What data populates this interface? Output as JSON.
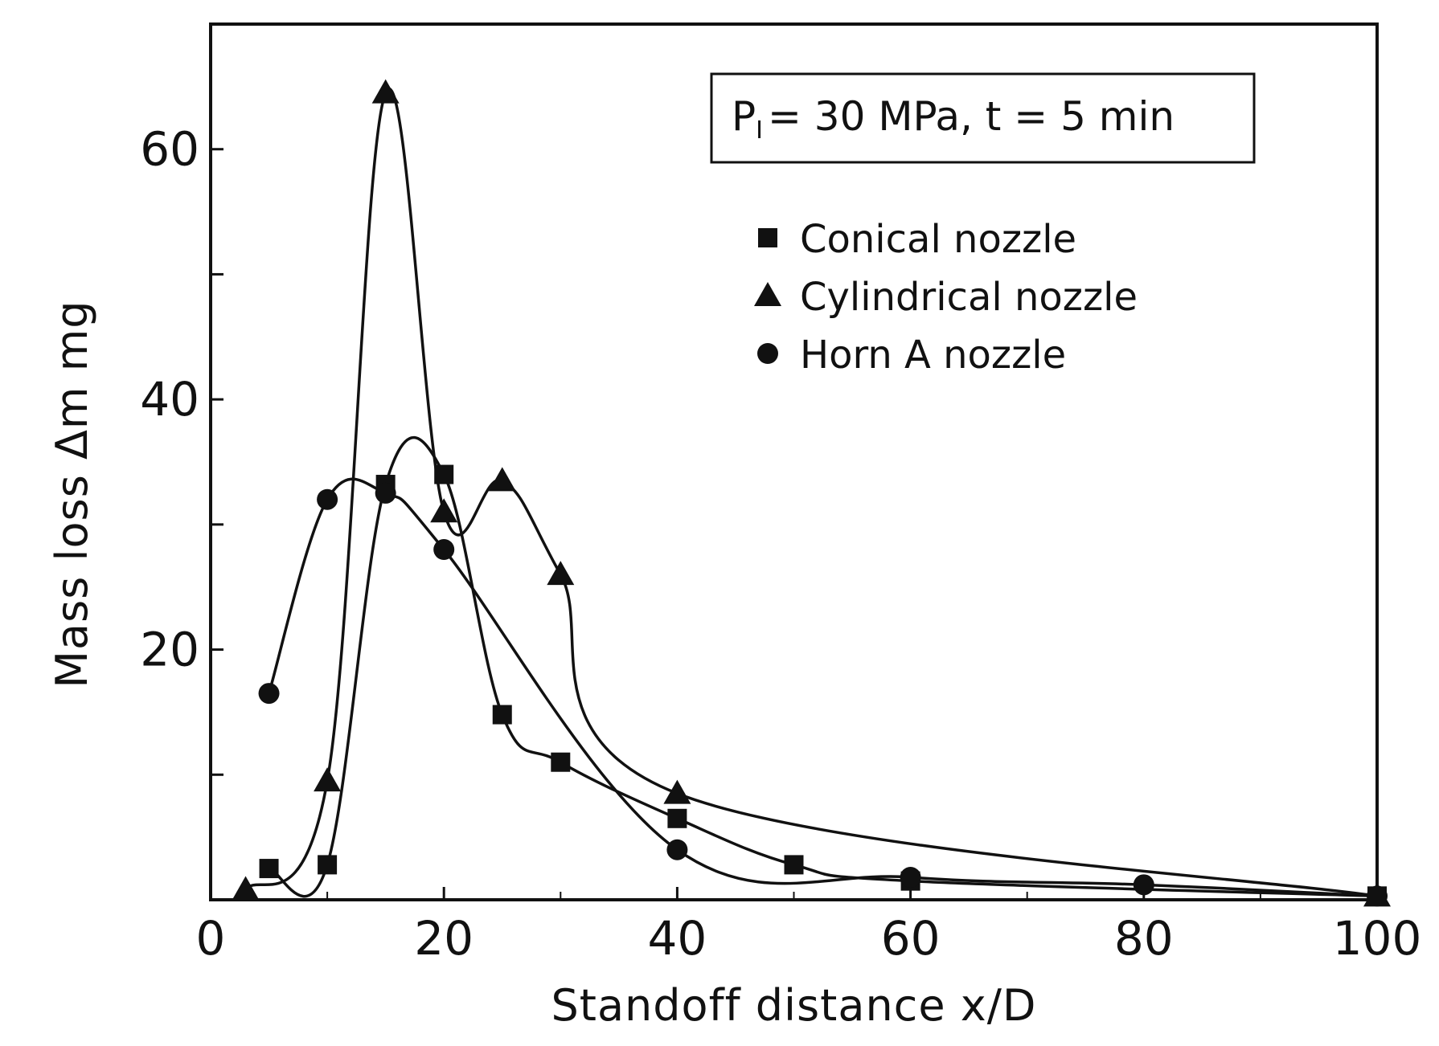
{
  "chart_data": {
    "type": "line",
    "xlabel": "Standoff distance  x/D",
    "ylabel": "Mass loss  Δm  mg",
    "xlim": [
      0,
      100
    ],
    "ylim": [
      0,
      70
    ],
    "x_ticks": [
      0,
      20,
      40,
      60,
      80,
      100
    ],
    "x_tick_labels": [
      "0",
      "20",
      "40",
      "60",
      "80",
      "100"
    ],
    "y_ticks": [
      0,
      10,
      20,
      30,
      40,
      50,
      60
    ],
    "y_tick_labels": [
      "",
      "",
      "20",
      "",
      "40",
      "",
      "60"
    ],
    "grid": false,
    "annotation": "P₁ = 30 MPa,  t = 5 min",
    "annotation_parts": {
      "lhs": "P",
      "sub": "I",
      "rhs": "= 30 MPa,  t = 5 min"
    },
    "legend_position": "top-right",
    "series": [
      {
        "name": "Conical nozzle",
        "marker": "square",
        "x": [
          5,
          10,
          15,
          20,
          25,
          30,
          40,
          50,
          60,
          100
        ],
        "y": [
          2.5,
          2.8,
          33.2,
          34.0,
          14.8,
          11.0,
          6.5,
          2.8,
          1.5,
          0.3
        ]
      },
      {
        "name": "Cylindrical nozzle",
        "marker": "triangle",
        "x": [
          3,
          10,
          15,
          20,
          25,
          30,
          40,
          100
        ],
        "y": [
          0.8,
          9.5,
          64.5,
          31.0,
          33.5,
          26.0,
          8.5,
          0.3
        ]
      },
      {
        "name": "Horn A nozzle",
        "marker": "circle",
        "x": [
          5,
          10,
          15,
          20,
          40,
          60,
          80,
          100
        ],
        "y": [
          16.5,
          32.0,
          32.5,
          28.0,
          4.0,
          1.8,
          1.2,
          0.3
        ]
      }
    ]
  }
}
